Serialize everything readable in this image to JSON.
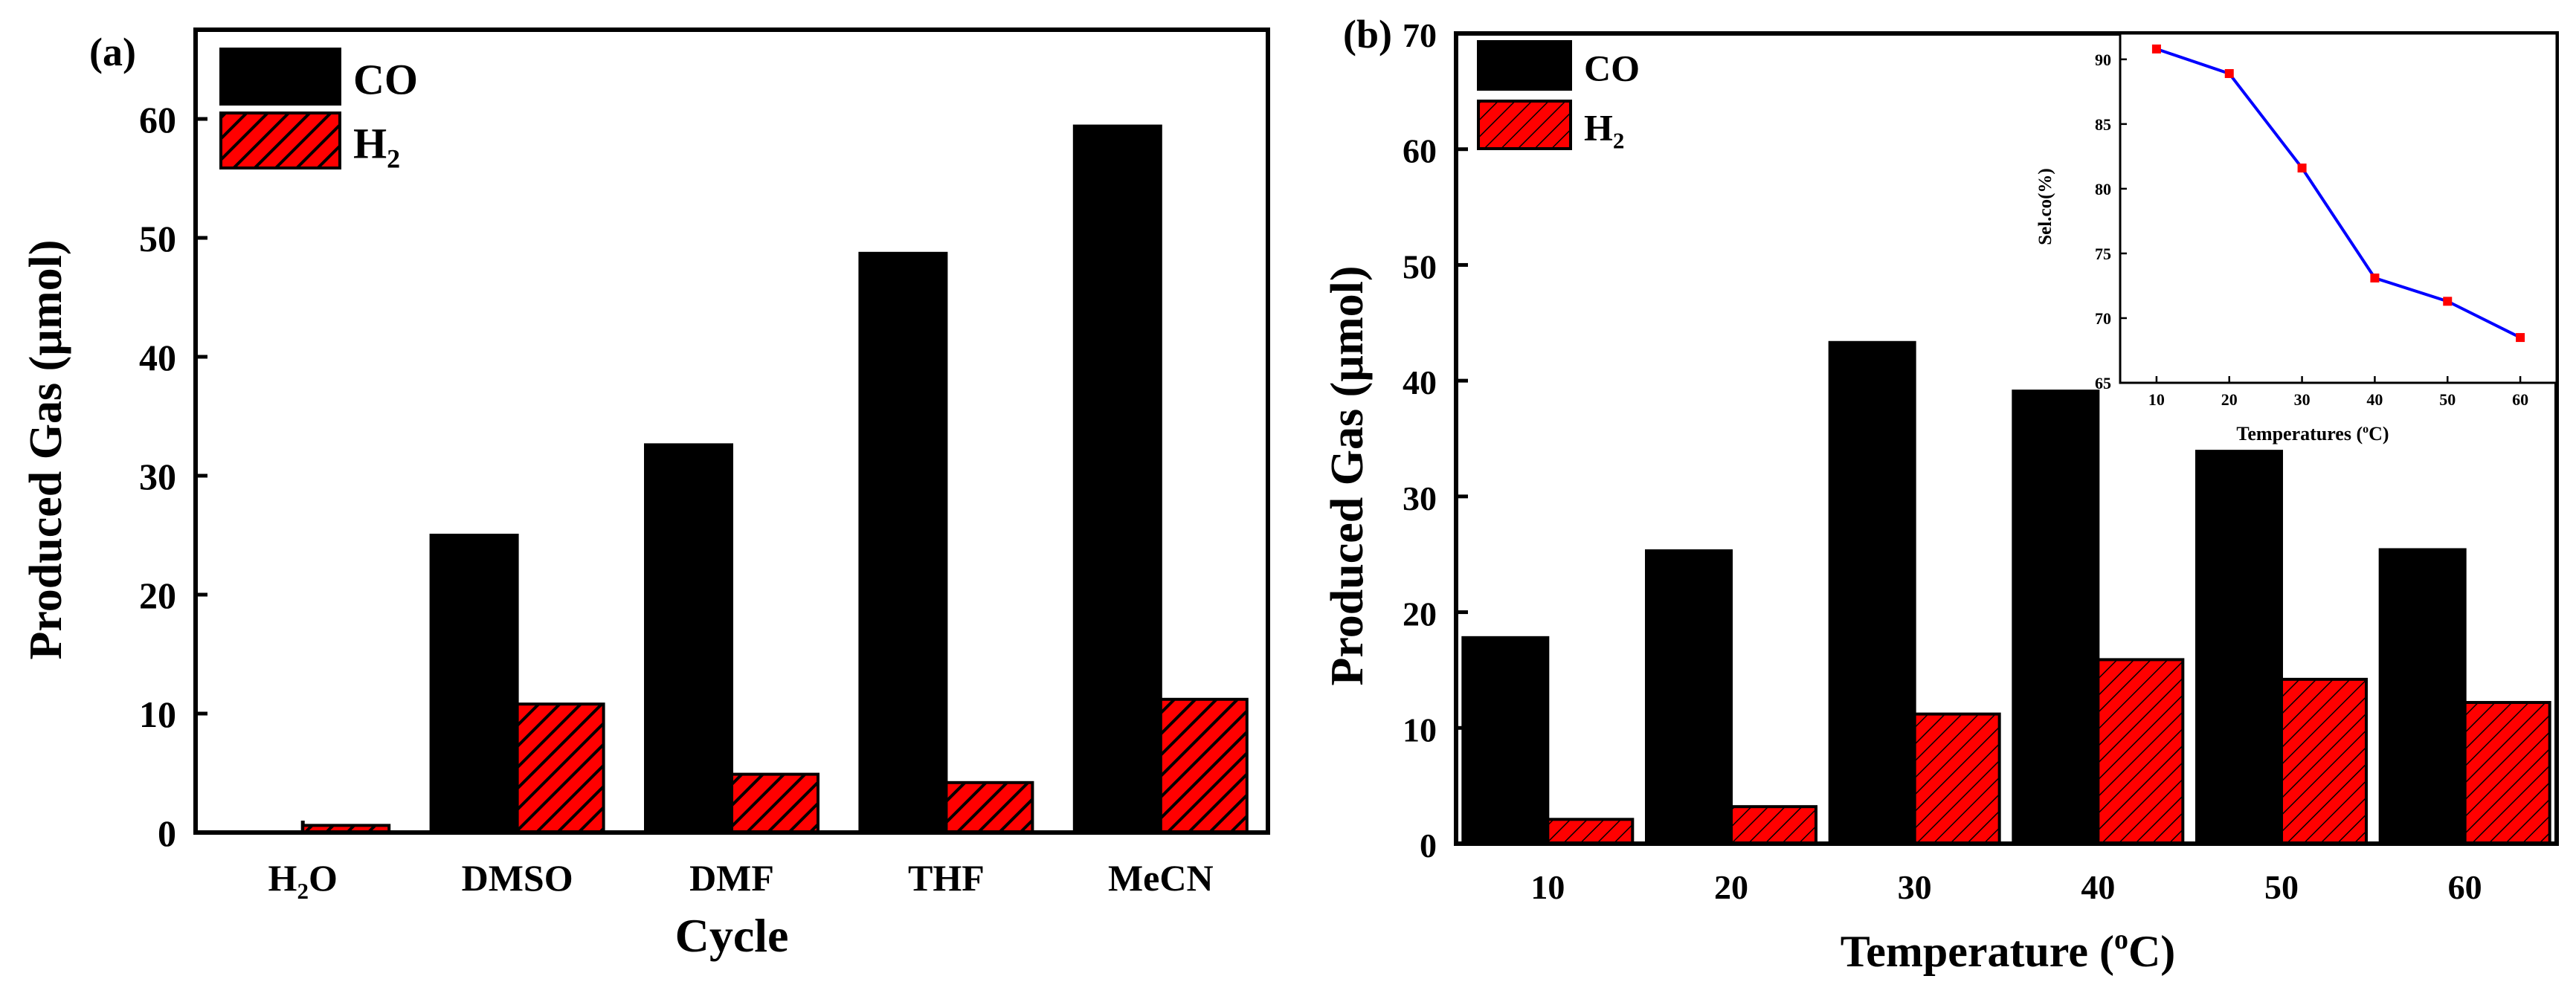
{
  "chart_data": [
    {
      "type": "bar",
      "panel_label": "(a)",
      "title": "",
      "categories": [
        "H2O",
        "DMSO",
        "DMF",
        "THF",
        "MeCN"
      ],
      "series": [
        {
          "name": "CO",
          "values": [
            0,
            25,
            32.6,
            48.7,
            59.4
          ],
          "color": "#000000",
          "pattern": "solid"
        },
        {
          "name": "H2",
          "values": [
            0.6,
            10.8,
            4.9,
            4.2,
            11.2
          ],
          "color": "#ff0000",
          "pattern": "hatched"
        }
      ],
      "xlabel": "Cycle",
      "ylabel": "Produced Gas (µmol)",
      "ylim": [
        0,
        67.5
      ],
      "yticks": [
        0,
        10,
        20,
        30,
        40,
        50,
        60
      ],
      "legend_position": "top-left",
      "grid": false
    },
    {
      "type": "bar",
      "panel_label": "(b)",
      "title": "",
      "categories": [
        "10",
        "20",
        "30",
        "40",
        "50",
        "60"
      ],
      "series": [
        {
          "name": "CO",
          "values": [
            17.8,
            25.3,
            43.3,
            39.1,
            33.9,
            25.4
          ],
          "color": "#000000",
          "pattern": "solid"
        },
        {
          "name": "H2",
          "values": [
            2.1,
            3.2,
            11.2,
            15.9,
            14.2,
            12.2
          ],
          "color": "#ff0000",
          "pattern": "hatched"
        }
      ],
      "xlabel": "Temperature (°C)",
      "xlabel_prefix": "Temperature (",
      "xlabel_sup": "o",
      "xlabel_suffix": "C)",
      "ylabel": "Produced Gas (µmol)",
      "ylim": [
        0,
        70
      ],
      "yticks": [
        0,
        10,
        20,
        30,
        40,
        50,
        60,
        70
      ],
      "legend_position": "top-left",
      "grid": false
    },
    {
      "type": "line",
      "inset_of": "(b)",
      "title": "",
      "x": [
        10,
        20,
        30,
        40,
        50,
        60
      ],
      "series": [
        {
          "name": "Sel.co(%)",
          "values": [
            90.8,
            88.9,
            81.6,
            73.1,
            71.3,
            68.5
          ],
          "color": "#0000ff",
          "marker_color": "#ff0000"
        }
      ],
      "xlabel": "Temperatures (°C)",
      "xlabel_prefix": "Temperatures (",
      "xlabel_sup": "o",
      "xlabel_suffix": "C)",
      "ylabel": "Sel.co(%)",
      "xlim": [
        5,
        65
      ],
      "ylim": [
        65,
        92
      ],
      "xticks": [
        10,
        20,
        30,
        40,
        50,
        60
      ],
      "yticks": [
        65,
        70,
        75,
        80,
        85,
        90
      ],
      "grid": false
    }
  ]
}
